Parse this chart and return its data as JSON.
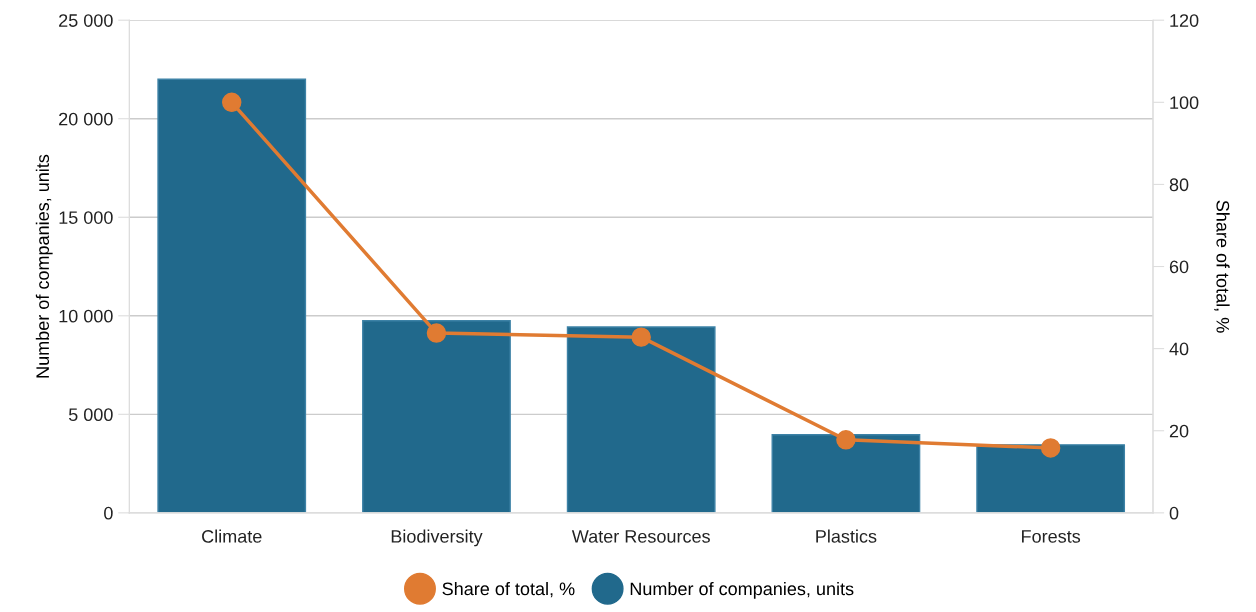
{
  "chart_data": {
    "type": "bar",
    "categories": [
      "Climate",
      "Biodiversity",
      "Water Resources",
      "Plastics",
      "Forests"
    ],
    "series": [
      {
        "name": "Share of total, %",
        "type": "line",
        "axis": "y2",
        "color": "#e07b32",
        "marker": "circle",
        "values": [
          100,
          43.8,
          42.8,
          17.8,
          15.8
        ]
      },
      {
        "name": "Number of companies, units",
        "color": "#21698c",
        "values": [
          22000,
          9750,
          9430,
          3960,
          3450
        ]
      }
    ],
    "ylabel": "Number of companies, units",
    "y2label": "Share of total, %",
    "ylim": [
      0,
      25000
    ],
    "yticks": [
      {
        "value": 0,
        "label": "0"
      },
      {
        "value": 5000,
        "label": "5 000"
      },
      {
        "value": 10000,
        "label": "10 000"
      },
      {
        "value": 15000,
        "label": "15 000"
      },
      {
        "value": 20000,
        "label": "20 000"
      },
      {
        "value": 25000,
        "label": "25 000"
      }
    ],
    "y2lim": [
      0,
      120
    ],
    "y2ticks": [
      0,
      20,
      40,
      60,
      80,
      100,
      120
    ],
    "grid": "y",
    "legend": "bottom"
  }
}
